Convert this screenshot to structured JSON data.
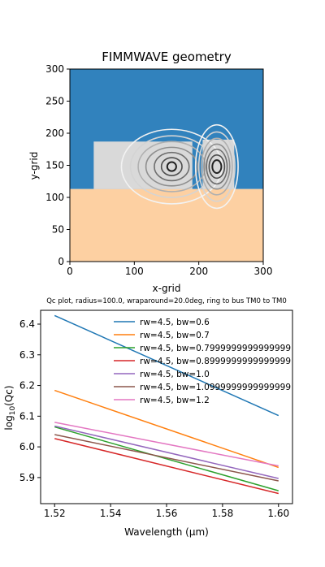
{
  "chart_data": [
    {
      "type": "heatmap",
      "title": "FIMMWAVE geometry",
      "xlabel": "x-grid",
      "ylabel": "y-grid",
      "xlim": [
        0,
        300
      ],
      "ylim": [
        0,
        300
      ],
      "xticks": [
        "0",
        "100",
        "200",
        "300"
      ],
      "yticks": [
        "0",
        "50",
        "100",
        "150",
        "200",
        "250",
        "300"
      ],
      "regions": [
        {
          "name": "upper cladding",
          "x": [
            0,
            300
          ],
          "y": [
            113,
            300
          ],
          "color": "#3182bd"
        },
        {
          "name": "substrate",
          "x": [
            0,
            300
          ],
          "y": [
            0,
            113
          ],
          "color": "#fdd0a2"
        },
        {
          "name": "ring waveguide",
          "x": [
            37,
            190
          ],
          "y": [
            113,
            187
          ],
          "color": "#d9d9d9"
        },
        {
          "name": "bus waveguide",
          "x": [
            206,
            255
          ],
          "y": [
            113,
            190
          ],
          "color": "#d9d9d9"
        }
      ],
      "mode_contours": [
        {
          "center": [
            158,
            148
          ],
          "rx": [
            7,
            16,
            27,
            40,
            52,
            64,
            78
          ],
          "ry": [
            7,
            14,
            22,
            30,
            39,
            48,
            58
          ]
        },
        {
          "center": [
            228,
            148
          ],
          "rx": [
            7,
            12,
            16,
            20,
            24,
            28,
            33
          ],
          "ry": [
            10,
            18,
            27,
            35,
            44,
            54,
            65
          ]
        }
      ]
    },
    {
      "type": "line",
      "title": "Qc plot, radius=100.0, wraparound=20.0deg, ring to bus TM0 to TM0",
      "xlabel": "Wavelength (µm)",
      "ylabel_base": "log",
      "ylabel_sub": "10",
      "ylabel_tail": "(Qc)",
      "xlim": [
        1.515,
        1.605
      ],
      "ylim": [
        5.815,
        6.445
      ],
      "xticks": [
        "1.52",
        "1.54",
        "1.56",
        "1.58",
        "1.60"
      ],
      "yticks": [
        "5.9",
        "6.0",
        "6.1",
        "6.2",
        "6.3",
        "6.4"
      ],
      "legend_position": "top-right",
      "x": [
        1.52,
        1.6
      ],
      "series": [
        {
          "name": "rw=4.5, bw=0.6",
          "color": "#1f77b4",
          "values": [
            6.428,
            6.102
          ]
        },
        {
          "name": "rw=4.5, bw=0.7",
          "color": "#ff7f0e",
          "values": [
            6.184,
            5.933
          ]
        },
        {
          "name": "rw=4.5, bw=0.7999999999999999",
          "color": "#2ca02c",
          "values": [
            6.065,
            5.857
          ]
        },
        {
          "name": "rw=4.5, bw=0.8999999999999999",
          "color": "#d62728",
          "values": [
            6.027,
            5.848
          ]
        },
        {
          "name": "rw=4.5, bw=1.0",
          "color": "#9467bd",
          "values": [
            6.068,
            5.897
          ]
        },
        {
          "name": "rw=4.5, bw=1.0999999999999999",
          "color": "#8c564b",
          "values": [
            6.04,
            5.889
          ]
        },
        {
          "name": "rw=4.5, bw=1.2",
          "color": "#e377c2",
          "values": [
            6.08,
            5.938
          ]
        }
      ]
    }
  ]
}
